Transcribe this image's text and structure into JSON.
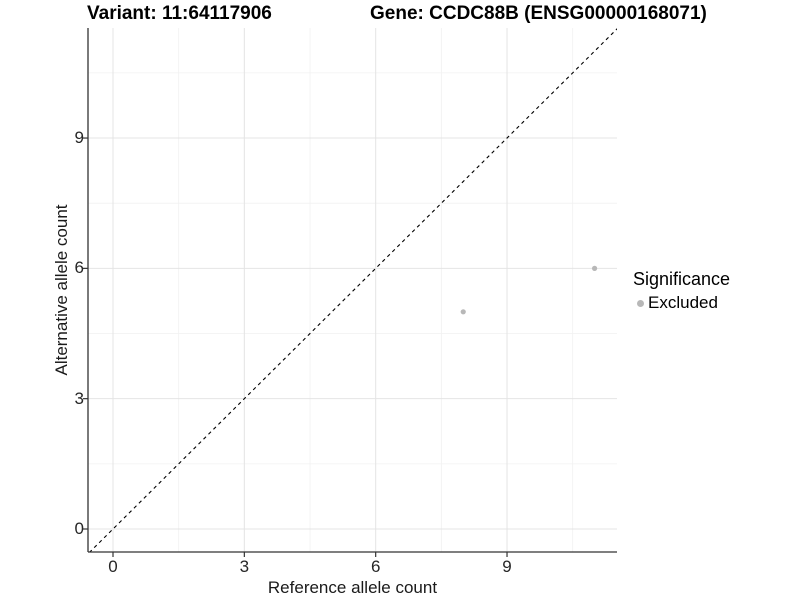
{
  "chart_data": {
    "type": "scatter",
    "title_left": "Variant: 11:64117906",
    "title_right": "Gene: CCDC88B (ENSG00000168071)",
    "xlabel": "Reference allele count",
    "ylabel": "Alternative allele count",
    "x_ticks": [
      0,
      3,
      6,
      9
    ],
    "y_ticks": [
      0,
      3,
      6,
      9
    ],
    "x_minor_ticks": [
      1.5,
      4.5,
      7.5,
      10.5
    ],
    "y_minor_ticks": [
      1.5,
      4.5,
      7.5,
      10.5
    ],
    "xlim": [
      -0.57,
      11.51
    ],
    "ylim": [
      -0.53,
      11.54
    ],
    "grid": "major and minor gridlines on, white background",
    "reference_line": {
      "type": "identity-diagonal",
      "style": "dashed",
      "color": "#000000"
    },
    "series": [
      {
        "name": "Excluded",
        "color": "#b8b8b8",
        "points": [
          {
            "x": 8,
            "y": 5
          },
          {
            "x": 11,
            "y": 6
          }
        ]
      }
    ],
    "legend": {
      "title": "Significance",
      "position": "right",
      "entries": [
        {
          "label": "Excluded",
          "color": "#b8b8b8"
        }
      ]
    },
    "colors": {
      "axis_line": "#333333",
      "grid_major": "#e4e4e4",
      "grid_minor": "#f1f1f1",
      "point": "#b8b8b8"
    }
  }
}
